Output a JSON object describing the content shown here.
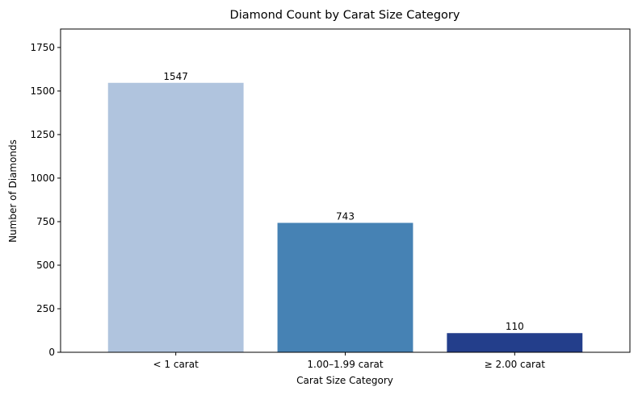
{
  "chart_data": {
    "type": "bar",
    "title": "Diamond Count by Carat Size Category",
    "xlabel": "Carat Size Category",
    "ylabel": "Number of Diamonds",
    "categories": [
      "< 1 carat",
      "1.00–1.99 carat",
      "≥ 2.00 carat"
    ],
    "values": [
      1547,
      743,
      110
    ],
    "data_labels": [
      "1547",
      "743",
      "110"
    ],
    "colors": [
      "#b0c4de",
      "#4682b4",
      "#233e8b"
    ],
    "ylim": [
      0,
      1856
    ],
    "yticks": [
      0,
      250,
      500,
      750,
      1000,
      1250,
      1500,
      1750
    ],
    "grid": false,
    "legend": "none"
  }
}
